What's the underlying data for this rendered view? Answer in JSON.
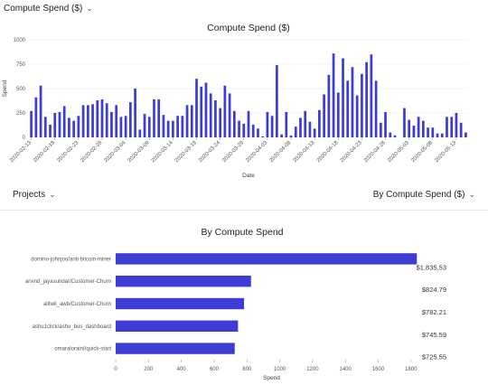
{
  "controls": {
    "top_dropdown": "Compute Spend ($)",
    "projects_dropdown": "Projects",
    "metric_dropdown": "By Compute Spend ($)",
    "chevron": "chevron-down-icon"
  },
  "colors": {
    "bar": "#3d3dd6",
    "grid": "#ebebeb"
  },
  "chart_data": [
    {
      "type": "bar",
      "title": "Compute Spend ($)",
      "xlabel": "Date",
      "ylabel": "Spend",
      "ylim": [
        0,
        1000
      ],
      "yticks": [
        0,
        250,
        500,
        750,
        1000
      ],
      "grid": "horizontal",
      "xtick_labels": [
        "2020-02-13",
        "2020-02-18",
        "2020-02-23",
        "2020-02-28",
        "2020-03-04",
        "2020-03-09",
        "2020-03-14",
        "2020-03-19",
        "2020-03-24",
        "2020-03-29",
        "2020-04-03",
        "2020-04-08",
        "2020-04-13",
        "2020-04-18",
        "2020-04-23",
        "2020-04-28",
        "2020-05-03",
        "2020-05-08",
        "2020-05-13"
      ],
      "x": [
        "2020-02-13",
        "2020-02-14",
        "2020-02-15",
        "2020-02-16",
        "2020-02-17",
        "2020-02-18",
        "2020-02-19",
        "2020-02-20",
        "2020-02-21",
        "2020-02-22",
        "2020-02-23",
        "2020-02-24",
        "2020-02-25",
        "2020-02-26",
        "2020-02-27",
        "2020-02-28",
        "2020-02-29",
        "2020-03-01",
        "2020-03-02",
        "2020-03-03",
        "2020-03-04",
        "2020-03-05",
        "2020-03-06",
        "2020-03-07",
        "2020-03-08",
        "2020-03-09",
        "2020-03-10",
        "2020-03-11",
        "2020-03-12",
        "2020-03-13",
        "2020-03-14",
        "2020-03-15",
        "2020-03-16",
        "2020-03-17",
        "2020-03-18",
        "2020-03-19",
        "2020-03-20",
        "2020-03-21",
        "2020-03-22",
        "2020-03-23",
        "2020-03-24",
        "2020-03-25",
        "2020-03-26",
        "2020-03-27",
        "2020-03-28",
        "2020-03-29",
        "2020-03-30",
        "2020-03-31",
        "2020-04-01",
        "2020-04-02",
        "2020-04-03",
        "2020-04-04",
        "2020-04-05",
        "2020-04-06",
        "2020-04-07",
        "2020-04-08",
        "2020-04-09",
        "2020-04-10",
        "2020-04-11",
        "2020-04-12",
        "2020-04-13",
        "2020-04-14",
        "2020-04-15",
        "2020-04-16",
        "2020-04-17",
        "2020-04-18",
        "2020-04-19",
        "2020-04-20",
        "2020-04-21",
        "2020-04-22",
        "2020-04-23",
        "2020-04-24",
        "2020-04-25",
        "2020-04-26",
        "2020-04-27",
        "2020-04-28",
        "2020-04-29",
        "2020-04-30",
        "2020-05-01",
        "2020-05-02",
        "2020-05-03",
        "2020-05-04",
        "2020-05-05",
        "2020-05-06",
        "2020-05-07",
        "2020-05-08",
        "2020-05-09",
        "2020-05-10",
        "2020-05-11",
        "2020-05-12",
        "2020-05-13",
        "2020-05-14",
        "2020-05-15"
      ],
      "values": [
        270,
        410,
        530,
        210,
        130,
        250,
        260,
        320,
        200,
        170,
        220,
        330,
        330,
        340,
        380,
        390,
        350,
        260,
        330,
        210,
        220,
        360,
        500,
        80,
        240,
        210,
        390,
        390,
        230,
        170,
        170,
        220,
        220,
        330,
        330,
        600,
        520,
        560,
        450,
        380,
        300,
        530,
        450,
        270,
        170,
        140,
        270,
        130,
        90,
        10,
        260,
        220,
        740,
        30,
        260,
        20,
        110,
        200,
        270,
        160,
        90,
        280,
        440,
        640,
        860,
        460,
        810,
        580,
        720,
        430,
        650,
        770,
        850,
        580,
        150,
        260,
        50,
        20,
        0,
        300,
        180,
        120,
        210,
        170,
        100,
        100,
        40,
        40,
        210,
        210,
        250,
        150,
        50
      ]
    },
    {
      "type": "bar",
      "orientation": "horizontal",
      "title": "By Compute Spend",
      "xlabel": "Spend",
      "xlim": [
        0,
        1900
      ],
      "xticks": [
        0,
        200,
        400,
        600,
        800,
        1000,
        1200,
        1400,
        1600,
        1800
      ],
      "categories": [
        "domino-johnjoo/anti-bitcoin-miner",
        "arvind_jayasundar/Customer-Churn",
        "alitwil_awb/Customer-Churn",
        "ashu1click/ashu_bus_dashboard",
        "omaralorainI/quick-start"
      ],
      "values": [
        1835.53,
        824.79,
        782.21,
        745.59,
        725.55
      ],
      "value_labels": [
        "$1,835.53",
        "$824.79",
        "$782.21",
        "$745.59",
        "$725.55"
      ]
    }
  ]
}
